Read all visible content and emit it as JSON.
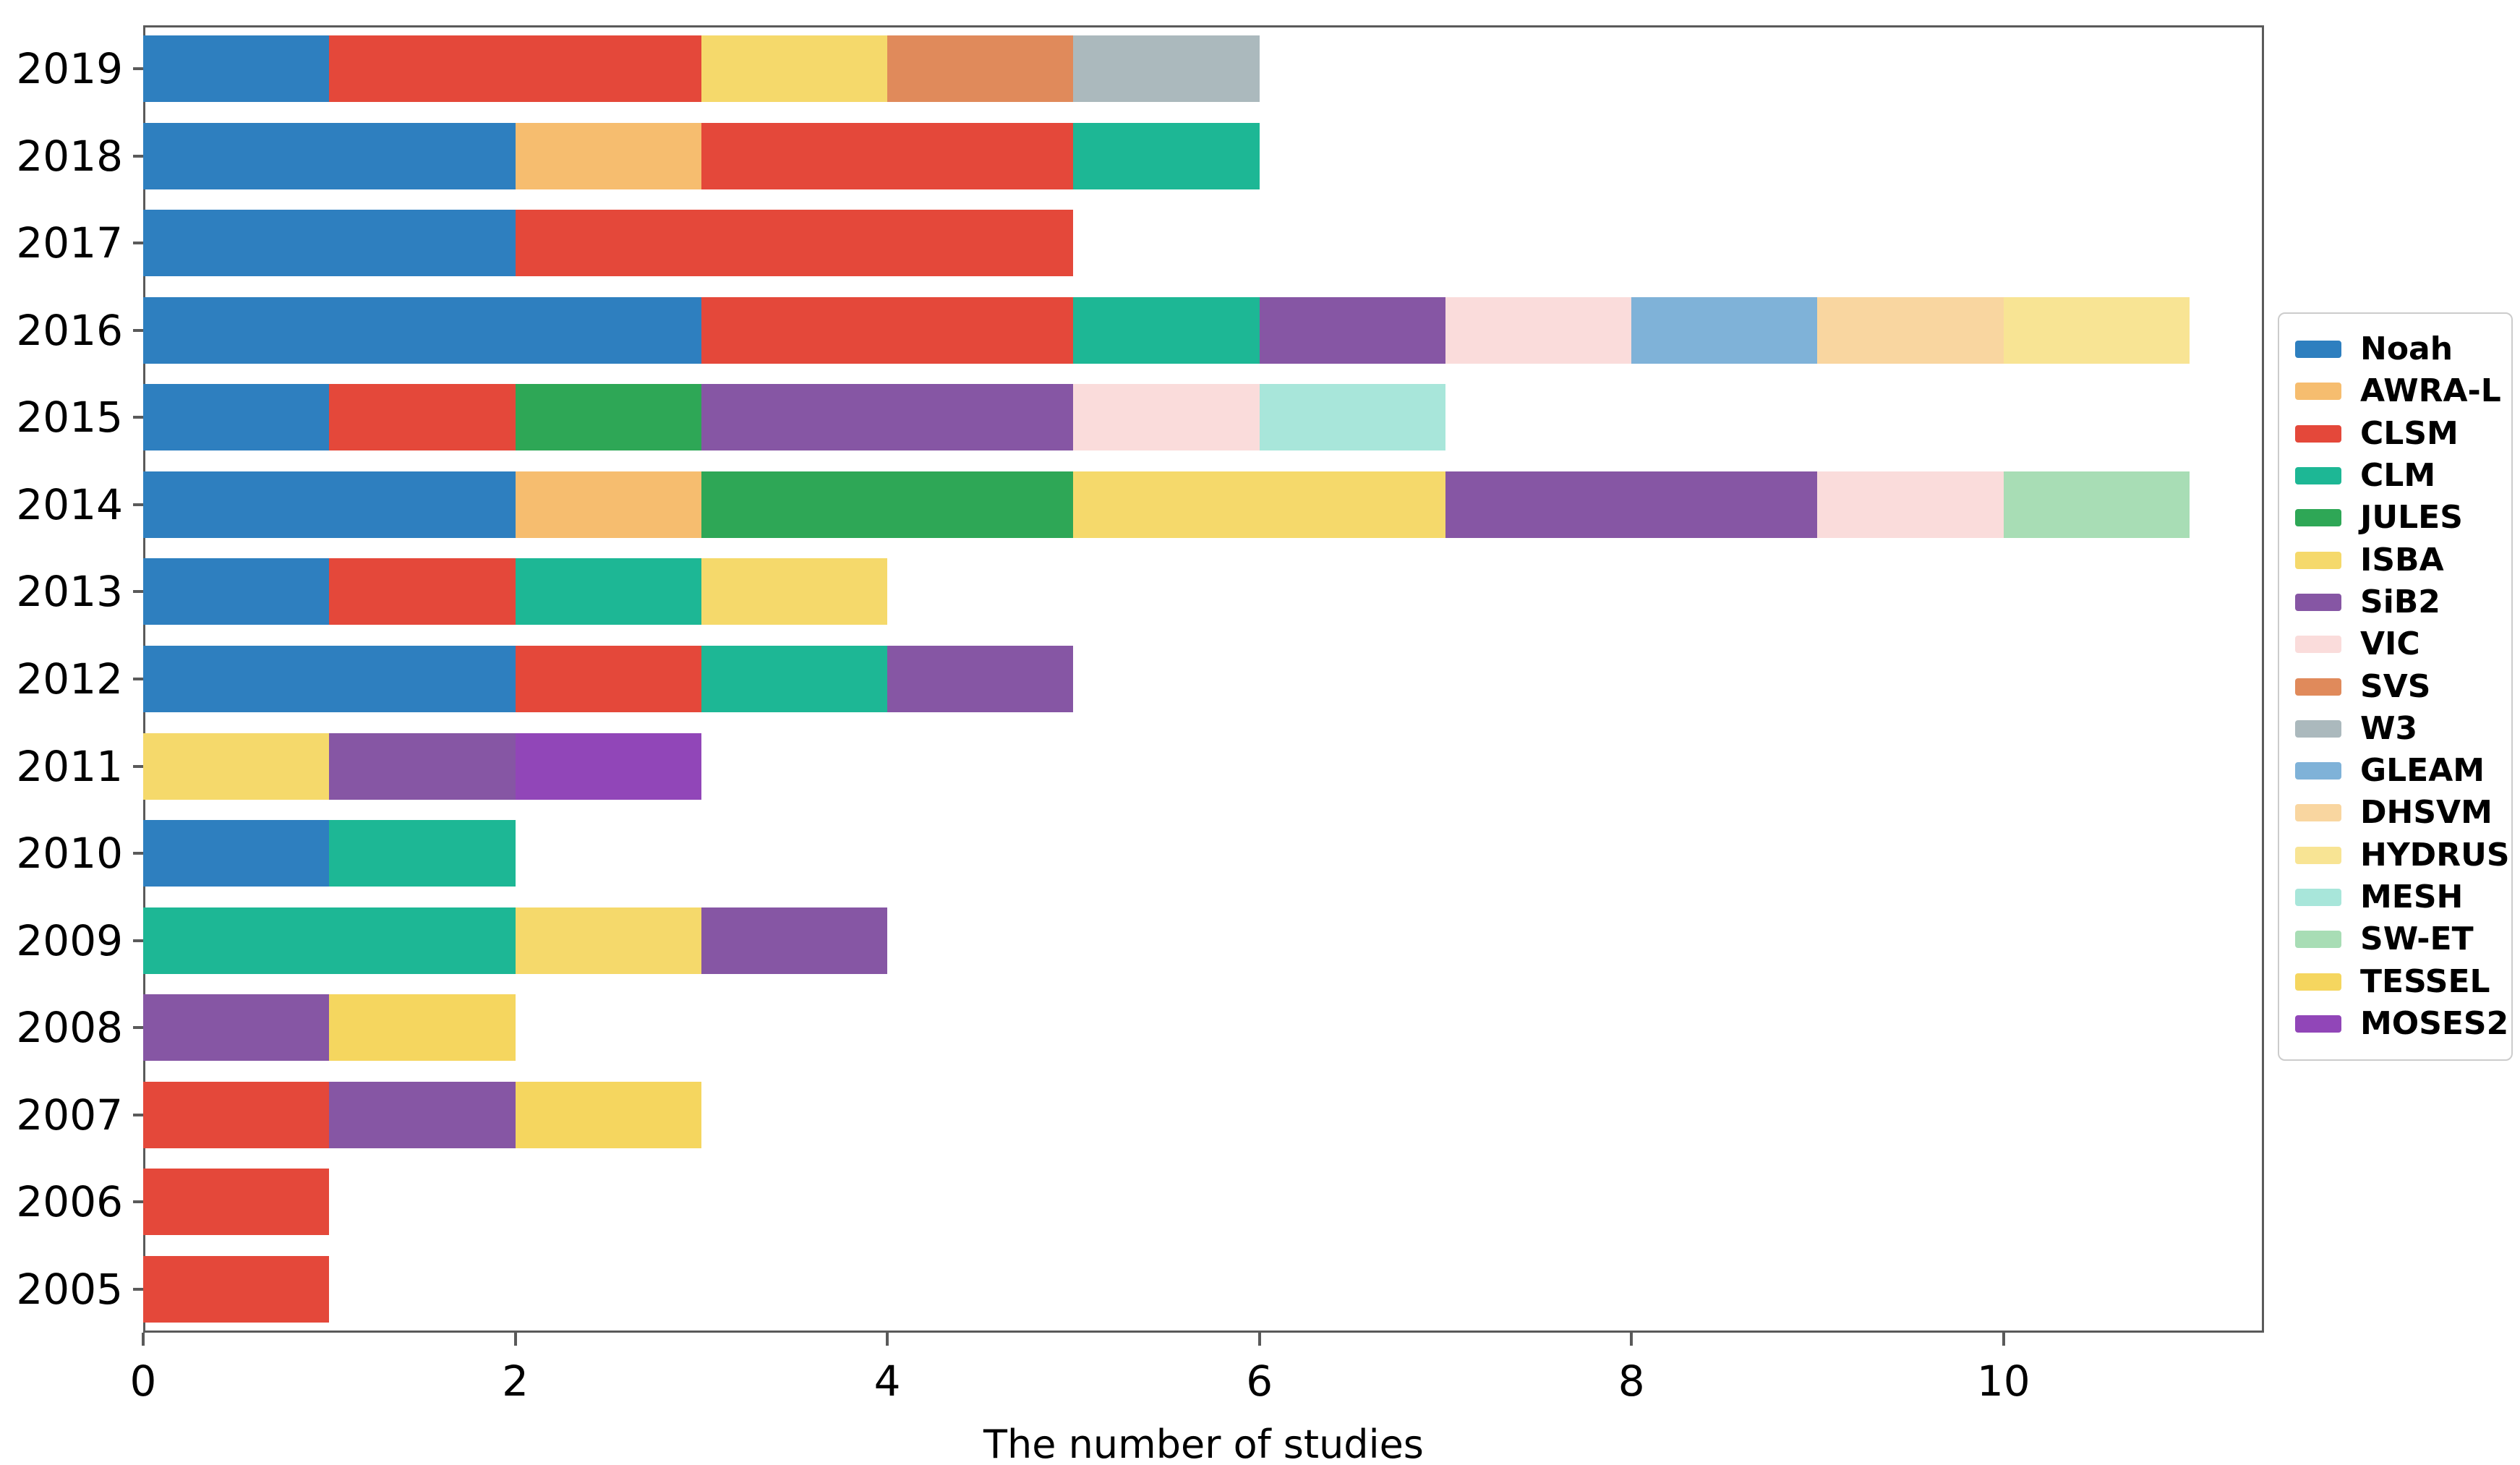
{
  "chart_data": {
    "type": "bar",
    "orientation": "horizontal",
    "stacked": true,
    "title": "",
    "xlabel": "The number of studies",
    "ylabel": "",
    "xticks": [
      "0",
      "2",
      "4",
      "6",
      "8",
      "10"
    ],
    "xtick_values": [
      0,
      2,
      4,
      6,
      8,
      10
    ],
    "xlim": [
      0,
      11.4
    ],
    "grid": false,
    "legend_position": "right-outside",
    "categories": [
      "2019",
      "2018",
      "2017",
      "2016",
      "2015",
      "2014",
      "2013",
      "2012",
      "2011",
      "2010",
      "2009",
      "2008",
      "2007",
      "2006",
      "2005"
    ],
    "models": [
      {
        "name": "Noah",
        "color": "#2e7fbf"
      },
      {
        "name": "AWRA-L",
        "color": "#f6bd6f"
      },
      {
        "name": "CLSM",
        "color": "#e4483a"
      },
      {
        "name": "CLM",
        "color": "#1db795"
      },
      {
        "name": "JULES",
        "color": "#2ea756"
      },
      {
        "name": "ISBA",
        "color": "#f5d96b"
      },
      {
        "name": "SiB2",
        "color": "#8656a4"
      },
      {
        "name": "VIC",
        "color": "#fadcdb"
      },
      {
        "name": "SVS",
        "color": "#e08a5b"
      },
      {
        "name": "W3",
        "color": "#abb9bd"
      },
      {
        "name": "GLEAM",
        "color": "#7fb2d8"
      },
      {
        "name": "DHSVM",
        "color": "#f9d6a0"
      },
      {
        "name": "HYDRUS",
        "color": "#f8e494"
      },
      {
        "name": "MESH",
        "color": "#a8e6da"
      },
      {
        "name": "SW-ET",
        "color": "#a8ddb5"
      },
      {
        "name": "TESSEL",
        "color": "#f5d65f"
      },
      {
        "name": "MOSES2",
        "color": "#9146b8"
      }
    ],
    "bars": [
      {
        "year": "2019",
        "total": 6,
        "segments": [
          {
            "model": "Noah",
            "value": 1
          },
          {
            "model": "CLSM",
            "value": 2
          },
          {
            "model": "ISBA",
            "value": 1
          },
          {
            "model": "SVS",
            "value": 1
          },
          {
            "model": "W3",
            "value": 1
          }
        ]
      },
      {
        "year": "2018",
        "total": 6,
        "segments": [
          {
            "model": "Noah",
            "value": 2
          },
          {
            "model": "AWRA-L",
            "value": 1
          },
          {
            "model": "CLSM",
            "value": 2
          },
          {
            "model": "CLM",
            "value": 1
          }
        ]
      },
      {
        "year": "2017",
        "total": 5,
        "segments": [
          {
            "model": "Noah",
            "value": 2
          },
          {
            "model": "CLSM",
            "value": 3
          }
        ]
      },
      {
        "year": "2016",
        "total": 11,
        "segments": [
          {
            "model": "Noah",
            "value": 3
          },
          {
            "model": "CLSM",
            "value": 2
          },
          {
            "model": "CLM",
            "value": 1
          },
          {
            "model": "SiB2",
            "value": 1
          },
          {
            "model": "VIC",
            "value": 1
          },
          {
            "model": "GLEAM",
            "value": 1
          },
          {
            "model": "DHSVM",
            "value": 1
          },
          {
            "model": "HYDRUS",
            "value": 1
          }
        ]
      },
      {
        "year": "2015",
        "total": 7,
        "segments": [
          {
            "model": "Noah",
            "value": 1
          },
          {
            "model": "CLSM",
            "value": 1
          },
          {
            "model": "JULES",
            "value": 1
          },
          {
            "model": "SiB2",
            "value": 2
          },
          {
            "model": "VIC",
            "value": 1
          },
          {
            "model": "MESH",
            "value": 1
          }
        ]
      },
      {
        "year": "2014",
        "total": 11,
        "segments": [
          {
            "model": "Noah",
            "value": 2
          },
          {
            "model": "AWRA-L",
            "value": 1
          },
          {
            "model": "JULES",
            "value": 2
          },
          {
            "model": "ISBA",
            "value": 2
          },
          {
            "model": "SiB2",
            "value": 2
          },
          {
            "model": "VIC",
            "value": 1
          },
          {
            "model": "SW-ET",
            "value": 1
          }
        ]
      },
      {
        "year": "2013",
        "total": 4,
        "segments": [
          {
            "model": "Noah",
            "value": 1
          },
          {
            "model": "CLSM",
            "value": 1
          },
          {
            "model": "CLM",
            "value": 1
          },
          {
            "model": "ISBA",
            "value": 1
          }
        ]
      },
      {
        "year": "2012",
        "total": 5,
        "segments": [
          {
            "model": "Noah",
            "value": 2
          },
          {
            "model": "CLSM",
            "value": 1
          },
          {
            "model": "CLM",
            "value": 1
          },
          {
            "model": "SiB2",
            "value": 1
          }
        ]
      },
      {
        "year": "2011",
        "total": 3,
        "segments": [
          {
            "model": "ISBA",
            "value": 1
          },
          {
            "model": "SiB2",
            "value": 1
          },
          {
            "model": "MOSES2",
            "value": 1
          }
        ]
      },
      {
        "year": "2010",
        "total": 2,
        "segments": [
          {
            "model": "Noah",
            "value": 1
          },
          {
            "model": "CLM",
            "value": 1
          }
        ]
      },
      {
        "year": "2009",
        "total": 4,
        "segments": [
          {
            "model": "CLM",
            "value": 2
          },
          {
            "model": "ISBA",
            "value": 1
          },
          {
            "model": "SiB2",
            "value": 1
          }
        ]
      },
      {
        "year": "2008",
        "total": 2,
        "segments": [
          {
            "model": "SiB2",
            "value": 1
          },
          {
            "model": "TESSEL",
            "value": 1
          }
        ]
      },
      {
        "year": "2007",
        "total": 3,
        "segments": [
          {
            "model": "CLSM",
            "value": 1
          },
          {
            "model": "SiB2",
            "value": 1
          },
          {
            "model": "TESSEL",
            "value": 1
          }
        ]
      },
      {
        "year": "2006",
        "total": 1,
        "segments": [
          {
            "model": "CLSM",
            "value": 1
          }
        ]
      },
      {
        "year": "2005",
        "total": 1,
        "segments": [
          {
            "model": "CLSM",
            "value": 1
          }
        ]
      }
    ]
  }
}
